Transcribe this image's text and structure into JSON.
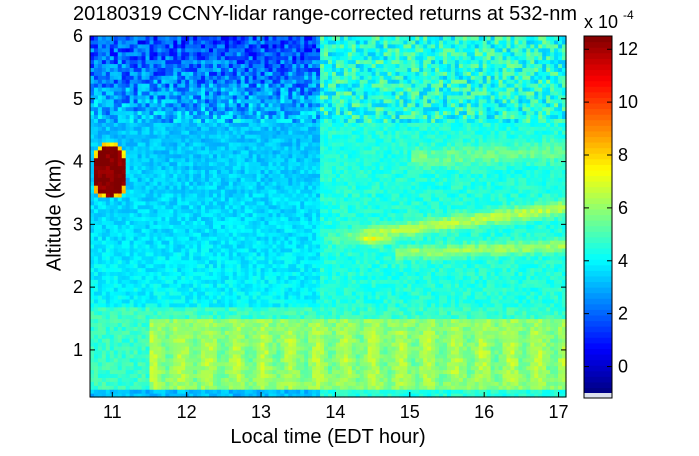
{
  "chart_data": {
    "type": "heatmap",
    "title": "20180319 CCNY-lidar range-corrected returns at 532-nm",
    "xlabel": "Local time (EDT hour)",
    "ylabel": "Altitude (km)",
    "xlim": [
      10.7,
      17.1
    ],
    "ylim": [
      0.25,
      6
    ],
    "xticks": [
      "11",
      "12",
      "13",
      "14",
      "15",
      "16",
      "17"
    ],
    "yticks": [
      "1",
      "2",
      "3",
      "4",
      "5",
      "6"
    ],
    "colorbar": {
      "label_prefix": "x 10",
      "label_exponent": "-4",
      "range": [
        -1,
        12.5
      ],
      "ticks": [
        "0",
        "2",
        "4",
        "6",
        "8",
        "10",
        "12"
      ],
      "colormap": "jet"
    },
    "features": [
      {
        "name": "cloud",
        "time_range": [
          10.75,
          11.2
        ],
        "altitude_range": [
          3.45,
          4.35
        ],
        "value": 12.5
      },
      {
        "name": "boundary layer",
        "time_range": [
          10.7,
          17.1
        ],
        "altitude_range": [
          0.4,
          1.5
        ],
        "value": 6.0
      },
      {
        "name": "aerosol layer",
        "time_range": [
          13.8,
          17.1
        ],
        "altitude_range": [
          2.6,
          3.2
        ],
        "value": 6.5
      },
      {
        "name": "upper aerosol layer",
        "time_range": [
          15.0,
          17.1
        ],
        "altitude_range": [
          3.8,
          4.4
        ],
        "value": 5.5
      }
    ]
  }
}
